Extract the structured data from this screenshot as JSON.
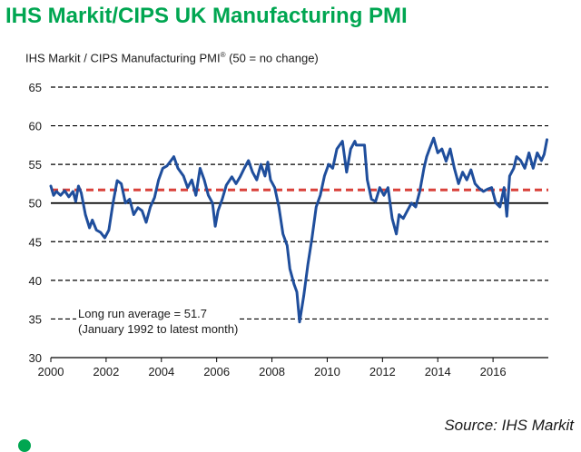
{
  "header": {
    "title": "IHS Markit/CIPS UK Manufacturing PMI",
    "subtitle_main": "IHS Markit / CIPS Manufacturing PMI",
    "subtitle_reg": "®",
    "subtitle_note": " (50 = no change)"
  },
  "annotation": {
    "line1": "Long run average = 51.7",
    "line2": "(January 1992 to latest month)"
  },
  "footer": {
    "source": "Source: IHS Markit"
  },
  "colors": {
    "title": "#00a651",
    "series": "#1f4e9c",
    "average": "#d9413a",
    "grid": "#000000"
  },
  "chart_data": {
    "type": "line",
    "title": "IHS Markit/CIPS UK Manufacturing PMI",
    "ylabel": "IHS Markit / CIPS Manufacturing PMI® (50 = no change)",
    "xlabel": "",
    "xlim": [
      2000,
      2018
    ],
    "ylim": [
      30,
      65
    ],
    "yticks": [
      30,
      35,
      40,
      45,
      50,
      55,
      60,
      65
    ],
    "xticks": [
      2000,
      2002,
      2004,
      2006,
      2008,
      2010,
      2012,
      2014,
      2016
    ],
    "grid": "horizontal dashed",
    "reference_line": {
      "name": "Long run average",
      "value": 51.7
    },
    "series": [
      {
        "name": "Manufacturing PMI",
        "points": [
          [
            2000.0,
            52.2
          ],
          [
            2000.1,
            51.0
          ],
          [
            2000.2,
            51.5
          ],
          [
            2000.35,
            51.0
          ],
          [
            2000.5,
            51.6
          ],
          [
            2000.65,
            50.8
          ],
          [
            2000.8,
            51.5
          ],
          [
            2000.9,
            50.2
          ],
          [
            2001.0,
            52.2
          ],
          [
            2001.1,
            51.3
          ],
          [
            2001.25,
            48.5
          ],
          [
            2001.4,
            46.8
          ],
          [
            2001.5,
            47.8
          ],
          [
            2001.65,
            46.5
          ],
          [
            2001.8,
            46.2
          ],
          [
            2001.95,
            45.5
          ],
          [
            2002.1,
            46.5
          ],
          [
            2002.25,
            50.0
          ],
          [
            2002.4,
            52.9
          ],
          [
            2002.55,
            52.5
          ],
          [
            2002.7,
            50.0
          ],
          [
            2002.85,
            50.5
          ],
          [
            2003.0,
            48.5
          ],
          [
            2003.15,
            49.4
          ],
          [
            2003.3,
            49.0
          ],
          [
            2003.45,
            47.5
          ],
          [
            2003.6,
            49.5
          ],
          [
            2003.75,
            50.7
          ],
          [
            2003.9,
            53.0
          ],
          [
            2004.05,
            54.5
          ],
          [
            2004.2,
            54.8
          ],
          [
            2004.35,
            55.5
          ],
          [
            2004.45,
            56.0
          ],
          [
            2004.6,
            54.5
          ],
          [
            2004.8,
            53.5
          ],
          [
            2004.95,
            52.0
          ],
          [
            2005.1,
            53.0
          ],
          [
            2005.25,
            51.0
          ],
          [
            2005.4,
            54.5
          ],
          [
            2005.55,
            53.0
          ],
          [
            2005.7,
            51.0
          ],
          [
            2005.85,
            50.0
          ],
          [
            2005.95,
            47.0
          ],
          [
            2006.05,
            49.0
          ],
          [
            2006.2,
            50.5
          ],
          [
            2006.35,
            52.3
          ],
          [
            2006.55,
            53.4
          ],
          [
            2006.7,
            52.5
          ],
          [
            2006.85,
            53.4
          ],
          [
            2007.0,
            54.5
          ],
          [
            2007.15,
            55.5
          ],
          [
            2007.3,
            54.0
          ],
          [
            2007.45,
            53.0
          ],
          [
            2007.6,
            55.0
          ],
          [
            2007.75,
            53.5
          ],
          [
            2007.85,
            55.3
          ],
          [
            2007.95,
            53.0
          ],
          [
            2008.1,
            52.0
          ],
          [
            2008.25,
            49.5
          ],
          [
            2008.4,
            46.0
          ],
          [
            2008.55,
            44.5
          ],
          [
            2008.65,
            41.5
          ],
          [
            2008.8,
            39.5
          ],
          [
            2008.9,
            38.5
          ],
          [
            2009.0,
            34.6
          ],
          [
            2009.15,
            38.0
          ],
          [
            2009.3,
            42.0
          ],
          [
            2009.45,
            45.5
          ],
          [
            2009.6,
            49.5
          ],
          [
            2009.75,
            51.0
          ],
          [
            2009.9,
            53.5
          ],
          [
            2010.05,
            55.0
          ],
          [
            2010.2,
            54.5
          ],
          [
            2010.35,
            57.0
          ],
          [
            2010.45,
            57.5
          ],
          [
            2010.55,
            58.0
          ],
          [
            2010.7,
            54.0
          ],
          [
            2010.85,
            57.0
          ],
          [
            2011.0,
            58.0
          ],
          [
            2011.05,
            57.5
          ],
          [
            2011.2,
            57.5
          ],
          [
            2011.35,
            57.5
          ],
          [
            2011.45,
            53.0
          ],
          [
            2011.6,
            50.5
          ],
          [
            2011.75,
            50.2
          ],
          [
            2011.9,
            52.0
          ],
          [
            2012.05,
            51.0
          ],
          [
            2012.2,
            52.0
          ],
          [
            2012.35,
            48.0
          ],
          [
            2012.5,
            46.0
          ],
          [
            2012.6,
            48.5
          ],
          [
            2012.75,
            48.0
          ],
          [
            2012.9,
            49.0
          ],
          [
            2013.05,
            50.0
          ],
          [
            2013.2,
            49.5
          ],
          [
            2013.35,
            51.5
          ],
          [
            2013.5,
            54.5
          ],
          [
            2013.6,
            56.0
          ],
          [
            2013.7,
            57.0
          ],
          [
            2013.85,
            58.4
          ],
          [
            2014.0,
            56.5
          ],
          [
            2014.15,
            57.0
          ],
          [
            2014.3,
            55.4
          ],
          [
            2014.45,
            57.0
          ],
          [
            2014.6,
            54.5
          ],
          [
            2014.75,
            52.5
          ],
          [
            2014.9,
            54.0
          ],
          [
            2015.05,
            53.0
          ],
          [
            2015.2,
            54.3
          ],
          [
            2015.35,
            52.5
          ],
          [
            2015.5,
            51.9
          ],
          [
            2015.65,
            51.5
          ],
          [
            2015.8,
            51.8
          ],
          [
            2015.95,
            52.0
          ],
          [
            2016.1,
            50.0
          ],
          [
            2016.25,
            49.5
          ],
          [
            2016.4,
            52.0
          ],
          [
            2016.5,
            48.3
          ],
          [
            2016.6,
            53.5
          ],
          [
            2016.75,
            54.5
          ],
          [
            2016.85,
            56.0
          ],
          [
            2017.0,
            55.5
          ],
          [
            2017.15,
            54.5
          ],
          [
            2017.3,
            56.5
          ],
          [
            2017.45,
            54.5
          ],
          [
            2017.6,
            56.5
          ],
          [
            2017.75,
            55.5
          ],
          [
            2017.85,
            56.3
          ],
          [
            2017.95,
            58.2
          ]
        ]
      }
    ]
  }
}
